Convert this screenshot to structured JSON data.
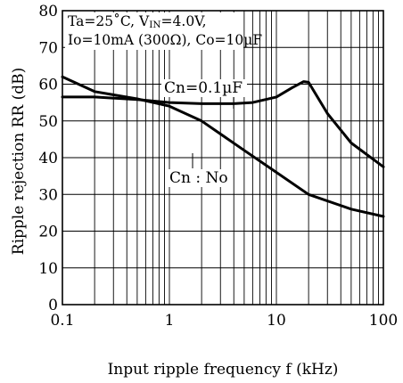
{
  "chart_data": {
    "type": "line",
    "x_scale": "log",
    "xlim": [
      0.1,
      100
    ],
    "ylim": [
      0,
      80
    ],
    "grid": true,
    "xlabel": "Input ripple frequency f (kHz)",
    "ylabel": "Ripple rejection RR (dB)",
    "x_ticks": [
      "0.1",
      "1",
      "10",
      "100"
    ],
    "y_ticks": [
      "0",
      "10",
      "20",
      "30",
      "40",
      "50",
      "60",
      "70",
      "80"
    ],
    "conditions": [
      "Ta=25˚C, V",
      "IN",
      "=4.0V,",
      "Io=10mA (300Ω), Co=10µF"
    ],
    "series": [
      {
        "name": "Cn=0.1µF",
        "x": [
          0.1,
          0.2,
          0.5,
          1,
          2,
          4,
          6,
          10,
          14,
          18,
          20,
          30,
          50,
          100
        ],
        "y": [
          56.5,
          56.5,
          55.8,
          55,
          54.7,
          54.7,
          55,
          56.5,
          59,
          60.7,
          60.5,
          52,
          44,
          37.5
        ]
      },
      {
        "name": "Cn : No",
        "x": [
          0.1,
          0.2,
          0.5,
          1,
          2,
          5,
          10,
          20,
          50,
          100
        ],
        "y": [
          62,
          58,
          56,
          54,
          50,
          42,
          36,
          30,
          26,
          24
        ]
      }
    ]
  }
}
